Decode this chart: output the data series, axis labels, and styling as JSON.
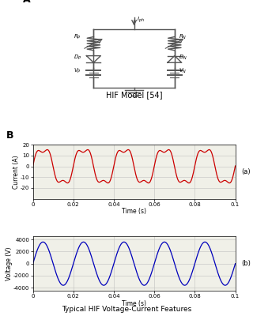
{
  "title_A": "A",
  "title_B": "B",
  "hif_label": "HIF Model [54]",
  "bottom_label": "Typical HIF Voltage-Current Features",
  "current_ylabel": "Current (A)",
  "current_xlabel": "Time (s)",
  "voltage_ylabel": "Voltage (V)",
  "voltage_xlabel": "Time (s)",
  "label_a": "(a)",
  "label_b": "(b)",
  "current_color": "#cc0000",
  "voltage_color": "#0000bb",
  "current_ylim": [
    -30,
    20
  ],
  "current_yticks": [
    -20,
    -10,
    0,
    10,
    20
  ],
  "voltage_ylim": [
    -4500,
    4500
  ],
  "voltage_yticks": [
    -4000,
    -2000,
    0,
    2000,
    4000
  ],
  "xlim": [
    0,
    0.1
  ],
  "xticks": [
    0,
    0.02,
    0.04,
    0.06,
    0.08,
    0.1
  ],
  "freq": 50,
  "current_amplitude": 17,
  "voltage_amplitude": 3600,
  "background_color": "#f0f0e8",
  "grid_color": "#c0c0c0",
  "wire_color": "#555555"
}
